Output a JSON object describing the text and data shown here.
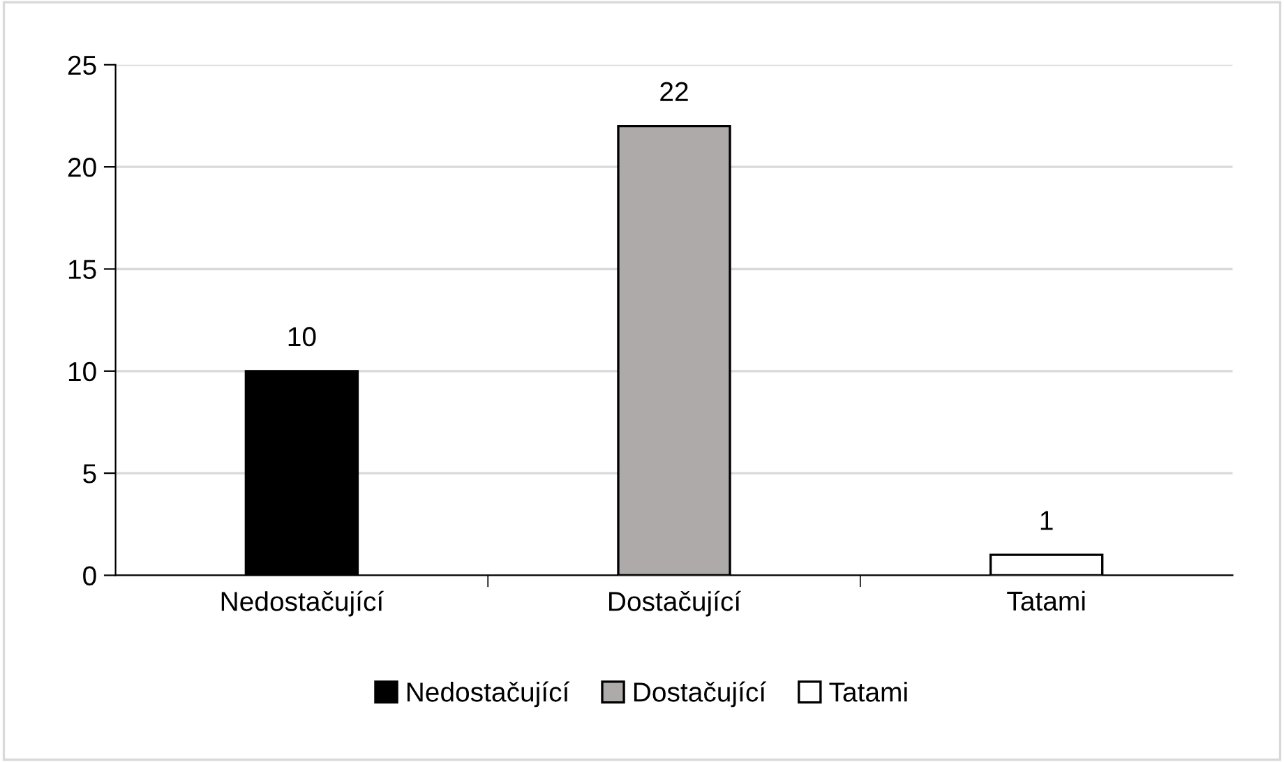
{
  "chart_data": {
    "type": "bar",
    "categories": [
      "Nedostačující",
      "Dostačující",
      "Tatami"
    ],
    "series": [
      {
        "name": "Nedostačující",
        "color": "#000000",
        "values": [
          10,
          null,
          null
        ]
      },
      {
        "name": "Dostačující",
        "color": "#aeaaaa",
        "values": [
          null,
          22,
          null
        ]
      },
      {
        "name": "Tatami",
        "color": "#ffffff",
        "values": [
          null,
          null,
          1
        ]
      }
    ],
    "ylim": [
      0,
      25
    ],
    "yticks": [
      0,
      5,
      10,
      15,
      20,
      25
    ],
    "grid": "y",
    "legend": "bottom",
    "data_labels": true
  }
}
